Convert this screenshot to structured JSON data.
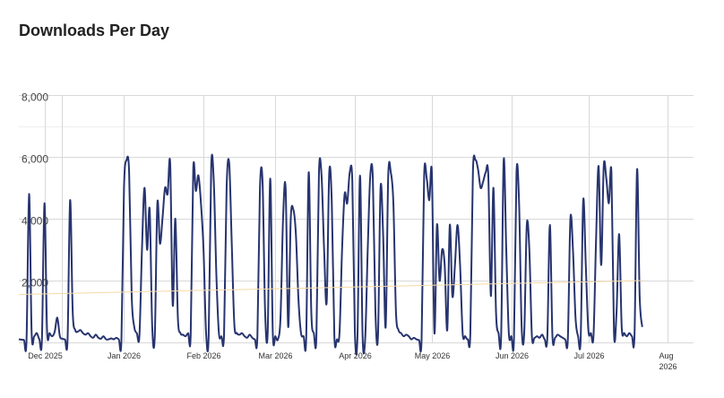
{
  "chart_data": {
    "type": "line",
    "title": "Downloads Per Day",
    "xlabel": "",
    "ylabel": "",
    "x_range": [
      "2025-11-21",
      "2026-08-11"
    ],
    "ylim": [
      0,
      8000
    ],
    "yticks": [
      {
        "value": 0,
        "label": ""
      },
      {
        "value": 2000,
        "label": "2,000"
      },
      {
        "value": 4000,
        "label": "4,000"
      },
      {
        "value": 6000,
        "label": "6,000"
      },
      {
        "value": 8000,
        "label": "8,000"
      }
    ],
    "xticks": [
      {
        "date": "2025-12-01",
        "label": "Dec 2025"
      },
      {
        "date": "2026-01-01",
        "label": "Jan 2026"
      },
      {
        "date": "2026-02-01",
        "label": "Feb 2026"
      },
      {
        "date": "2026-03-01",
        "label": "Mar 2026"
      },
      {
        "date": "2026-04-01",
        "label": "Apr 2026"
      },
      {
        "date": "2026-05-01",
        "label": "May 2026"
      },
      {
        "date": "2026-06-01",
        "label": "Jun 2026"
      },
      {
        "date": "2026-07-01",
        "label": "Jul 2026"
      },
      {
        "date": "2026-08-01",
        "label": "Aug 2026"
      }
    ],
    "grid": true,
    "legend": "none",
    "series": [
      {
        "color": "#27346f",
        "style": "solid",
        "points": [
          [
            "2025-11-21",
            100
          ],
          [
            "2025-11-22",
            90
          ],
          [
            "2025-11-23",
            80
          ],
          [
            "2025-11-24",
            60
          ],
          [
            "2025-11-25",
            4800
          ],
          [
            "2025-11-26",
            300
          ],
          [
            "2025-11-27",
            200
          ],
          [
            "2025-11-28",
            300
          ],
          [
            "2025-11-29",
            100
          ],
          [
            "2025-11-30",
            80
          ],
          [
            "2025-12-01",
            4500
          ],
          [
            "2025-12-02",
            400
          ],
          [
            "2025-12-03",
            300
          ],
          [
            "2025-12-04",
            200
          ],
          [
            "2025-12-05",
            350
          ],
          [
            "2025-12-06",
            800
          ],
          [
            "2025-12-07",
            200
          ],
          [
            "2025-12-08",
            120
          ],
          [
            "2025-12-09",
            100
          ],
          [
            "2025-12-10",
            90
          ],
          [
            "2025-12-11",
            4600
          ],
          [
            "2025-12-12",
            1000
          ],
          [
            "2025-12-13",
            400
          ],
          [
            "2025-12-14",
            350
          ],
          [
            "2025-12-15",
            400
          ],
          [
            "2025-12-16",
            300
          ],
          [
            "2025-12-17",
            250
          ],
          [
            "2025-12-18",
            300
          ],
          [
            "2025-12-19",
            200
          ],
          [
            "2025-12-20",
            150
          ],
          [
            "2025-12-21",
            250
          ],
          [
            "2025-12-22",
            150
          ],
          [
            "2025-12-23",
            120
          ],
          [
            "2025-12-24",
            200
          ],
          [
            "2025-12-25",
            100
          ],
          [
            "2025-12-26",
            100
          ],
          [
            "2025-12-27",
            130
          ],
          [
            "2025-12-28",
            100
          ],
          [
            "2025-12-29",
            150
          ],
          [
            "2025-12-30",
            100
          ],
          [
            "2025-12-31",
            80
          ],
          [
            "2026-01-01",
            5000
          ],
          [
            "2026-01-02",
            5900
          ],
          [
            "2026-01-03",
            5500
          ],
          [
            "2026-01-04",
            1500
          ],
          [
            "2026-01-05",
            500
          ],
          [
            "2026-01-06",
            300
          ],
          [
            "2026-01-07",
            200
          ],
          [
            "2026-01-08",
            3000
          ],
          [
            "2026-01-09",
            5000
          ],
          [
            "2026-01-10",
            3000
          ],
          [
            "2026-01-11",
            4300
          ],
          [
            "2026-01-12",
            500
          ],
          [
            "2026-01-13",
            200
          ],
          [
            "2026-01-14",
            4500
          ],
          [
            "2026-01-15",
            3200
          ],
          [
            "2026-01-16",
            4000
          ],
          [
            "2026-01-17",
            5000
          ],
          [
            "2026-01-18",
            4800
          ],
          [
            "2026-01-19",
            5800
          ],
          [
            "2026-01-20",
            1200
          ],
          [
            "2026-01-21",
            4000
          ],
          [
            "2026-01-22",
            800
          ],
          [
            "2026-01-23",
            300
          ],
          [
            "2026-01-24",
            250
          ],
          [
            "2026-01-25",
            200
          ],
          [
            "2026-01-26",
            300
          ],
          [
            "2026-01-27",
            250
          ],
          [
            "2026-01-28",
            5600
          ],
          [
            "2026-01-29",
            4900
          ],
          [
            "2026-01-30",
            5400
          ],
          [
            "2026-01-31",
            4500
          ],
          [
            "2026-02-01",
            3000
          ],
          [
            "2026-02-02",
            300
          ],
          [
            "2026-02-03",
            200
          ],
          [
            "2026-02-04",
            5700
          ],
          [
            "2026-02-05",
            5200
          ],
          [
            "2026-02-06",
            2200
          ],
          [
            "2026-02-07",
            300
          ],
          [
            "2026-02-08",
            200
          ],
          [
            "2026-02-09",
            250
          ],
          [
            "2026-02-10",
            5000
          ],
          [
            "2026-02-11",
            5800
          ],
          [
            "2026-02-12",
            3200
          ],
          [
            "2026-02-13",
            600
          ],
          [
            "2026-02-14",
            300
          ],
          [
            "2026-02-15",
            250
          ],
          [
            "2026-02-16",
            300
          ],
          [
            "2026-02-17",
            200
          ],
          [
            "2026-02-18",
            150
          ],
          [
            "2026-02-19",
            250
          ],
          [
            "2026-02-20",
            150
          ],
          [
            "2026-02-21",
            100
          ],
          [
            "2026-02-22",
            200
          ],
          [
            "2026-02-23",
            5000
          ],
          [
            "2026-02-24",
            5200
          ],
          [
            "2026-02-25",
            1000
          ],
          [
            "2026-02-26",
            300
          ],
          [
            "2026-02-27",
            5300
          ],
          [
            "2026-02-28",
            300
          ],
          [
            "2026-03-01",
            200
          ],
          [
            "2026-03-02",
            100
          ],
          [
            "2026-03-03",
            800
          ],
          [
            "2026-03-04",
            4000
          ],
          [
            "2026-03-05",
            5000
          ],
          [
            "2026-03-06",
            500
          ],
          [
            "2026-03-07",
            4000
          ],
          [
            "2026-03-08",
            4300
          ],
          [
            "2026-03-09",
            3500
          ],
          [
            "2026-03-10",
            1400
          ],
          [
            "2026-03-11",
            300
          ],
          [
            "2026-03-12",
            200
          ],
          [
            "2026-03-13",
            100
          ],
          [
            "2026-03-14",
            5500
          ],
          [
            "2026-03-15",
            1000
          ],
          [
            "2026-03-16",
            300
          ],
          [
            "2026-03-17",
            200
          ],
          [
            "2026-03-18",
            5500
          ],
          [
            "2026-03-19",
            5400
          ],
          [
            "2026-03-20",
            3000
          ],
          [
            "2026-03-21",
            1300
          ],
          [
            "2026-03-22",
            5500
          ],
          [
            "2026-03-23",
            4500
          ],
          [
            "2026-03-24",
            200
          ],
          [
            "2026-03-25",
            100
          ],
          [
            "2026-03-26",
            300
          ],
          [
            "2026-03-27",
            3000
          ],
          [
            "2026-03-28",
            4800
          ],
          [
            "2026-03-29",
            4500
          ],
          [
            "2026-03-30",
            5500
          ],
          [
            "2026-03-31",
            5200
          ],
          [
            "2026-04-01",
            300
          ],
          [
            "2026-04-02",
            200
          ],
          [
            "2026-04-03",
            5400
          ],
          [
            "2026-04-04",
            200
          ],
          [
            "2026-04-05",
            100
          ],
          [
            "2026-04-06",
            3000
          ],
          [
            "2026-04-07",
            5400
          ],
          [
            "2026-04-08",
            5300
          ],
          [
            "2026-04-09",
            1000
          ],
          [
            "2026-04-10",
            200
          ],
          [
            "2026-04-11",
            5000
          ],
          [
            "2026-04-12",
            3500
          ],
          [
            "2026-04-13",
            500
          ],
          [
            "2026-04-14",
            5400
          ],
          [
            "2026-04-15",
            5500
          ],
          [
            "2026-04-16",
            4500
          ],
          [
            "2026-04-17",
            1000
          ],
          [
            "2026-04-18",
            400
          ],
          [
            "2026-04-19",
            300
          ],
          [
            "2026-04-20",
            200
          ],
          [
            "2026-04-21",
            250
          ],
          [
            "2026-04-22",
            200
          ],
          [
            "2026-04-23",
            100
          ],
          [
            "2026-04-24",
            150
          ],
          [
            "2026-04-25",
            100
          ],
          [
            "2026-04-26",
            80
          ],
          [
            "2026-04-27",
            100
          ],
          [
            "2026-04-28",
            5400
          ],
          [
            "2026-04-29",
            5300
          ],
          [
            "2026-04-30",
            4600
          ],
          [
            "2026-05-01",
            5500
          ],
          [
            "2026-05-02",
            300
          ],
          [
            "2026-05-03",
            3800
          ],
          [
            "2026-05-04",
            2000
          ],
          [
            "2026-05-05",
            3000
          ],
          [
            "2026-05-06",
            2500
          ],
          [
            "2026-05-07",
            400
          ],
          [
            "2026-05-08",
            3800
          ],
          [
            "2026-05-09",
            1500
          ],
          [
            "2026-05-10",
            2500
          ],
          [
            "2026-05-11",
            3800
          ],
          [
            "2026-05-12",
            2500
          ],
          [
            "2026-05-13",
            300
          ],
          [
            "2026-05-14",
            200
          ],
          [
            "2026-05-15",
            100
          ],
          [
            "2026-05-16",
            300
          ],
          [
            "2026-05-17",
            5500
          ],
          [
            "2026-05-18",
            5900
          ],
          [
            "2026-05-19",
            5600
          ],
          [
            "2026-05-20",
            5000
          ],
          [
            "2026-05-21",
            5200
          ],
          [
            "2026-05-22",
            5500
          ],
          [
            "2026-05-23",
            5400
          ],
          [
            "2026-05-24",
            1500
          ],
          [
            "2026-05-25",
            5000
          ],
          [
            "2026-05-26",
            1000
          ],
          [
            "2026-05-27",
            300
          ],
          [
            "2026-05-28",
            200
          ],
          [
            "2026-05-29",
            5900
          ],
          [
            "2026-05-30",
            3000
          ],
          [
            "2026-05-31",
            300
          ],
          [
            "2026-06-01",
            200
          ],
          [
            "2026-06-02",
            100
          ],
          [
            "2026-06-03",
            5500
          ],
          [
            "2026-06-04",
            4500
          ],
          [
            "2026-06-05",
            500
          ],
          [
            "2026-06-06",
            300
          ],
          [
            "2026-06-07",
            3800
          ],
          [
            "2026-06-08",
            3000
          ],
          [
            "2026-06-09",
            200
          ],
          [
            "2026-06-10",
            150
          ],
          [
            "2026-06-11",
            200
          ],
          [
            "2026-06-12",
            150
          ],
          [
            "2026-06-13",
            250
          ],
          [
            "2026-06-14",
            100
          ],
          [
            "2026-06-15",
            150
          ],
          [
            "2026-06-16",
            3800
          ],
          [
            "2026-06-17",
            200
          ],
          [
            "2026-06-18",
            150
          ],
          [
            "2026-06-19",
            250
          ],
          [
            "2026-06-20",
            200
          ],
          [
            "2026-06-21",
            150
          ],
          [
            "2026-06-22",
            100
          ],
          [
            "2026-06-23",
            100
          ],
          [
            "2026-06-24",
            4000
          ],
          [
            "2026-06-25",
            3000
          ],
          [
            "2026-06-26",
            800
          ],
          [
            "2026-06-27",
            200
          ],
          [
            "2026-06-28",
            100
          ],
          [
            "2026-06-29",
            4600
          ],
          [
            "2026-06-30",
            2500
          ],
          [
            "2026-07-01",
            400
          ],
          [
            "2026-07-02",
            300
          ],
          [
            "2026-07-03",
            200
          ],
          [
            "2026-07-04",
            3300
          ],
          [
            "2026-07-05",
            5700
          ],
          [
            "2026-07-06",
            2500
          ],
          [
            "2026-07-07",
            5700
          ],
          [
            "2026-07-08",
            5300
          ],
          [
            "2026-07-09",
            4500
          ],
          [
            "2026-07-10",
            5500
          ],
          [
            "2026-07-11",
            300
          ],
          [
            "2026-07-12",
            1000
          ],
          [
            "2026-07-13",
            3500
          ],
          [
            "2026-07-14",
            500
          ],
          [
            "2026-07-15",
            300
          ],
          [
            "2026-07-16",
            200
          ],
          [
            "2026-07-17",
            300
          ],
          [
            "2026-07-18",
            200
          ],
          [
            "2026-07-19",
            250
          ],
          [
            "2026-07-20",
            5600
          ],
          [
            "2026-07-21",
            1500
          ],
          [
            "2026-07-22",
            500
          ]
        ]
      },
      {
        "color": "#f5d9a6",
        "style": "solid",
        "points": [
          [
            "2025-11-21",
            1550
          ],
          [
            "2026-07-22",
            2000
          ]
        ]
      }
    ]
  }
}
